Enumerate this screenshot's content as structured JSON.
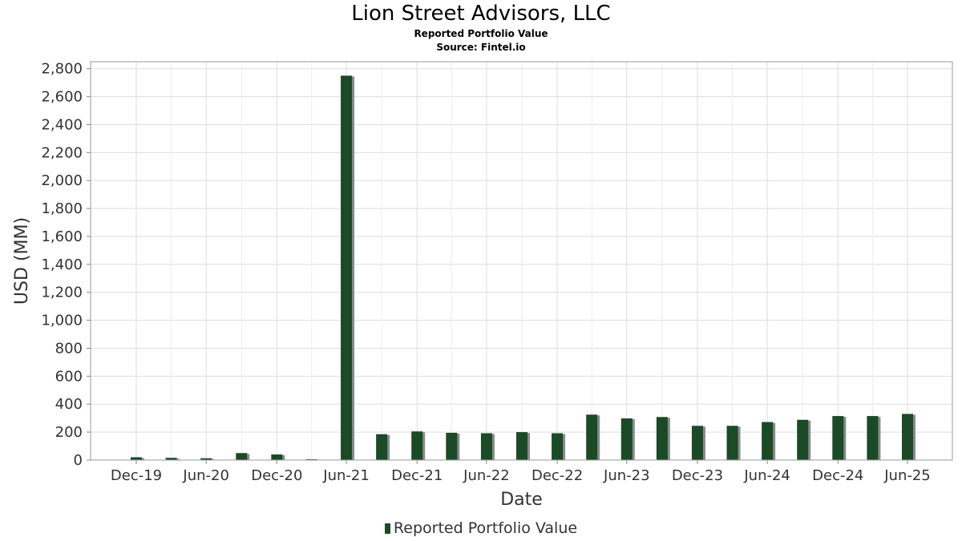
{
  "header": {
    "title": "Lion Street Advisors, LLC",
    "subtitle": "Reported Portfolio Value",
    "source": "Source: Fintel.io"
  },
  "legend": {
    "label": "Reported Portfolio Value"
  },
  "colors": {
    "bar": "#1a4a26",
    "bar_shadow": "#8a8a8a",
    "grid": "#dddddd"
  },
  "chart_data": {
    "type": "bar",
    "title": "Lion Street Advisors, LLC",
    "subtitle": "Reported Portfolio Value",
    "xlabel": "Date",
    "ylabel": "USD (MM)",
    "ylim": [
      0,
      2850
    ],
    "y_ticks": [
      0,
      200,
      400,
      600,
      800,
      1000,
      1200,
      1400,
      1600,
      1800,
      2000,
      2200,
      2400,
      2600,
      2800
    ],
    "y_tick_labels": [
      "0",
      "200",
      "400",
      "600",
      "800",
      "1,000",
      "1,200",
      "1,400",
      "1,600",
      "1,800",
      "2,000",
      "2,200",
      "2,400",
      "2,600",
      "2,800"
    ],
    "x_tick_labels": [
      "Dec-19",
      "Jun-20",
      "Dec-20",
      "Jun-21",
      "Dec-21",
      "Jun-22",
      "Dec-22",
      "Jun-23",
      "Dec-23",
      "Jun-24",
      "Dec-24",
      "Jun-25"
    ],
    "grid": true,
    "legend_position": "bottom",
    "series": [
      {
        "name": "Reported Portfolio Value",
        "x": [
          "2019-12-31",
          "2020-03-31",
          "2020-06-30",
          "2020-09-30",
          "2020-12-31",
          "2021-03-31",
          "2021-06-30",
          "2021-09-30",
          "2021-12-31",
          "2022-03-31",
          "2022-06-30",
          "2022-09-30",
          "2022-12-31",
          "2023-03-31",
          "2023-06-30",
          "2023-09-30",
          "2023-12-31",
          "2024-03-31",
          "2024-06-30",
          "2024-09-30",
          "2024-12-31",
          "2025-03-31",
          "2025-06-30"
        ],
        "values": [
          20,
          16,
          13,
          50,
          40,
          4,
          2750,
          185,
          205,
          195,
          192,
          200,
          192,
          325,
          298,
          308,
          245,
          245,
          272,
          288,
          315,
          315,
          330
        ]
      }
    ]
  }
}
